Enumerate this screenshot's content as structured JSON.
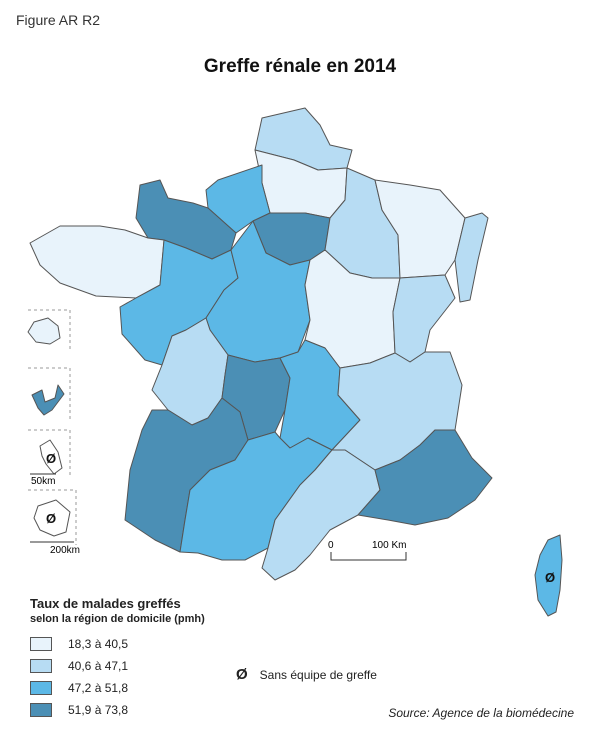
{
  "figure_label": "Figure AR R2",
  "title": "Greffe rénale en 2014",
  "legend": {
    "title": "Taux de malades greffés",
    "subtitle": "selon la région de domicile (pmh)",
    "classes": [
      {
        "label": "18,3 à 40,5",
        "color": "#e8f3fb"
      },
      {
        "label": "40,6 à 47,1",
        "color": "#b7dcf3"
      },
      {
        "label": "47,2 à 51,8",
        "color": "#5cb8e6"
      },
      {
        "label": "51,9 à 73,8",
        "color": "#4b8fb5"
      }
    ],
    "no_team_symbol": "Ø",
    "no_team_label": "Sans équipe de greffe"
  },
  "scale": {
    "start": "0",
    "end": "100 Km"
  },
  "inset_scales": {
    "antilles": "50km",
    "reunion": "200km"
  },
  "source": "Source: Agence de la biomédecine",
  "regions": [
    {
      "name": "Nord-Pas-de-Calais",
      "class": 1
    },
    {
      "name": "Picardie",
      "class": 0
    },
    {
      "name": "Haute-Normandie",
      "class": 2
    },
    {
      "name": "Basse-Normandie",
      "class": 3
    },
    {
      "name": "Île-de-France",
      "class": 3
    },
    {
      "name": "Champagne-Ardenne",
      "class": 1
    },
    {
      "name": "Lorraine",
      "class": 0
    },
    {
      "name": "Alsace",
      "class": 1
    },
    {
      "name": "Bretagne",
      "class": 0
    },
    {
      "name": "Pays de la Loire",
      "class": 2
    },
    {
      "name": "Centre",
      "class": 2
    },
    {
      "name": "Bourgogne",
      "class": 0
    },
    {
      "name": "Franche-Comté",
      "class": 1
    },
    {
      "name": "Poitou-Charentes",
      "class": 1
    },
    {
      "name": "Limousin",
      "class": 3
    },
    {
      "name": "Auvergne",
      "class": 2
    },
    {
      "name": "Rhône-Alpes",
      "class": 1
    },
    {
      "name": "Aquitaine",
      "class": 3
    },
    {
      "name": "Midi-Pyrénées",
      "class": 2
    },
    {
      "name": "Languedoc-Roussillon",
      "class": 1
    },
    {
      "name": "Provence-Alpes-Côte d'Azur",
      "class": 3
    },
    {
      "name": "Corse",
      "class": 2
    },
    {
      "name": "Réunion",
      "class": 0
    },
    {
      "name": "Guadeloupe",
      "class": 3
    },
    {
      "name": "Martinique",
      "class": null
    },
    {
      "name": "Guyane",
      "class": null
    }
  ]
}
